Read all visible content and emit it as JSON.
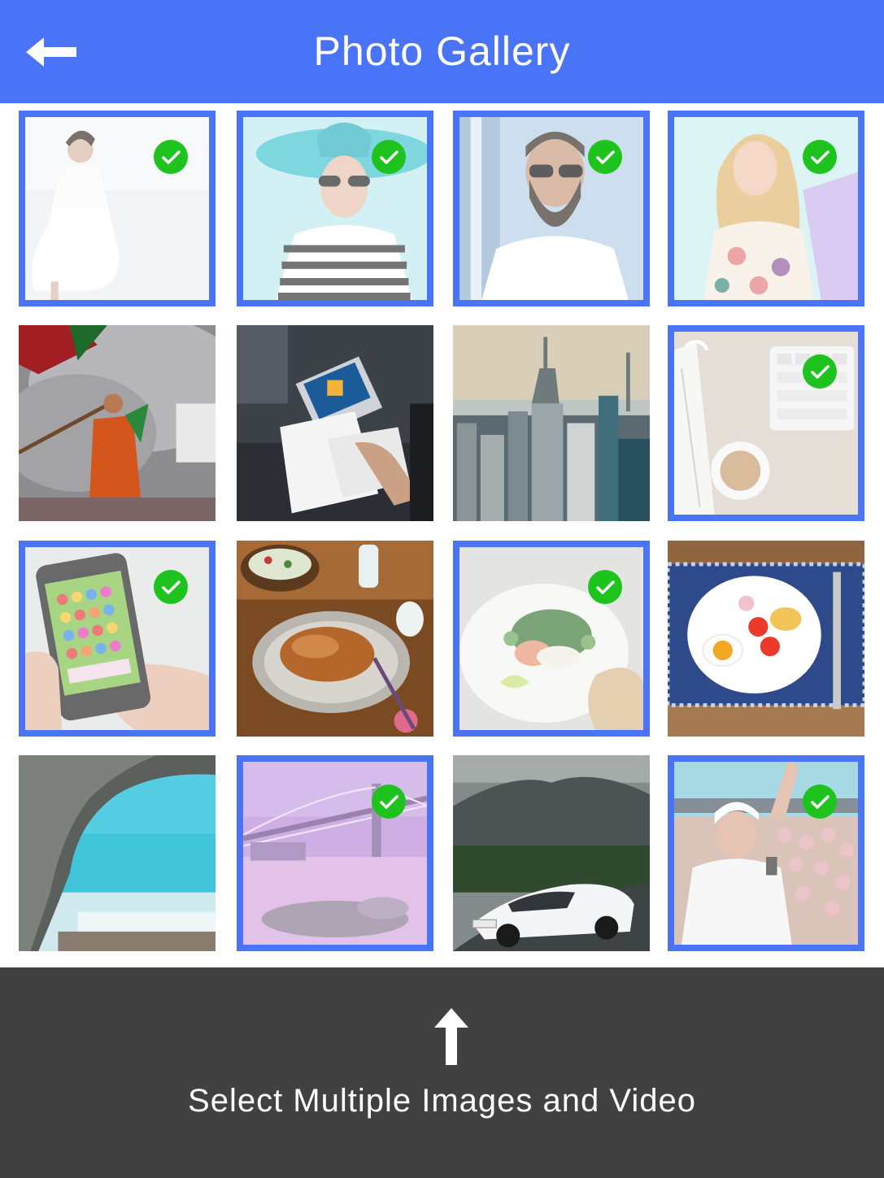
{
  "header": {
    "title": "Photo Gallery",
    "back_icon": "arrow-left-icon",
    "background": "#4a74f7"
  },
  "gallery": {
    "accent": "#4a74f7",
    "check_color": "#1ec31e",
    "items": [
      {
        "subject": "woman-white-dress",
        "selected": true
      },
      {
        "subject": "woman-blue-hat",
        "selected": true
      },
      {
        "subject": "bearded-man-sunglasses",
        "selected": true
      },
      {
        "subject": "woman-floral-blouse",
        "selected": true
      },
      {
        "subject": "fan-with-flag-in-smoke",
        "selected": false
      },
      {
        "subject": "meeting-laptop-papers",
        "selected": false
      },
      {
        "subject": "city-skyline",
        "selected": false
      },
      {
        "subject": "desk-keyboard-coffee",
        "selected": true
      },
      {
        "subject": "phone-candy-game",
        "selected": true
      },
      {
        "subject": "roast-chicken-dinner",
        "selected": false
      },
      {
        "subject": "salmon-plate",
        "selected": true
      },
      {
        "subject": "egg-breakfast-plate",
        "selected": false
      },
      {
        "subject": "sea-cave-beach",
        "selected": false
      },
      {
        "subject": "bridge-at-night",
        "selected": true
      },
      {
        "subject": "white-sports-car",
        "selected": false
      },
      {
        "subject": "singer-at-concert",
        "selected": true
      }
    ]
  },
  "footer": {
    "arrow_icon": "arrow-up-icon",
    "caption": "Select Multiple Images and Video",
    "background": "#414141"
  }
}
